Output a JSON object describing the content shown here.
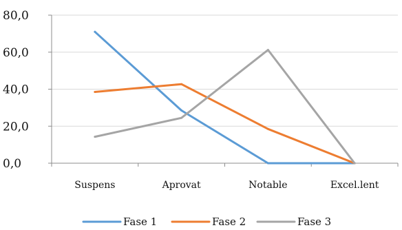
{
  "chart_data": {
    "type": "line",
    "categories": [
      "Suspens",
      "Aprovat",
      "Notable",
      "Excel.lent"
    ],
    "series": [
      {
        "name": "Fase 1",
        "color": "#5B9BD5",
        "values": [
          71.0,
          28.5,
          0.0,
          0.0
        ]
      },
      {
        "name": "Fase 2",
        "color": "#ED7D31",
        "values": [
          38.5,
          42.7,
          18.5,
          0.0
        ]
      },
      {
        "name": "Fase 3",
        "color": "#A5A5A5",
        "values": [
          14.3,
          24.5,
          61.2,
          0.0
        ]
      }
    ],
    "ylim": [
      0,
      80
    ],
    "yticks": [
      "0,0",
      "20,0",
      "40,0",
      "60,0",
      "80,0"
    ],
    "ytick_values": [
      0,
      20,
      40,
      60,
      80
    ],
    "grid": true,
    "legend_position": "bottom"
  }
}
